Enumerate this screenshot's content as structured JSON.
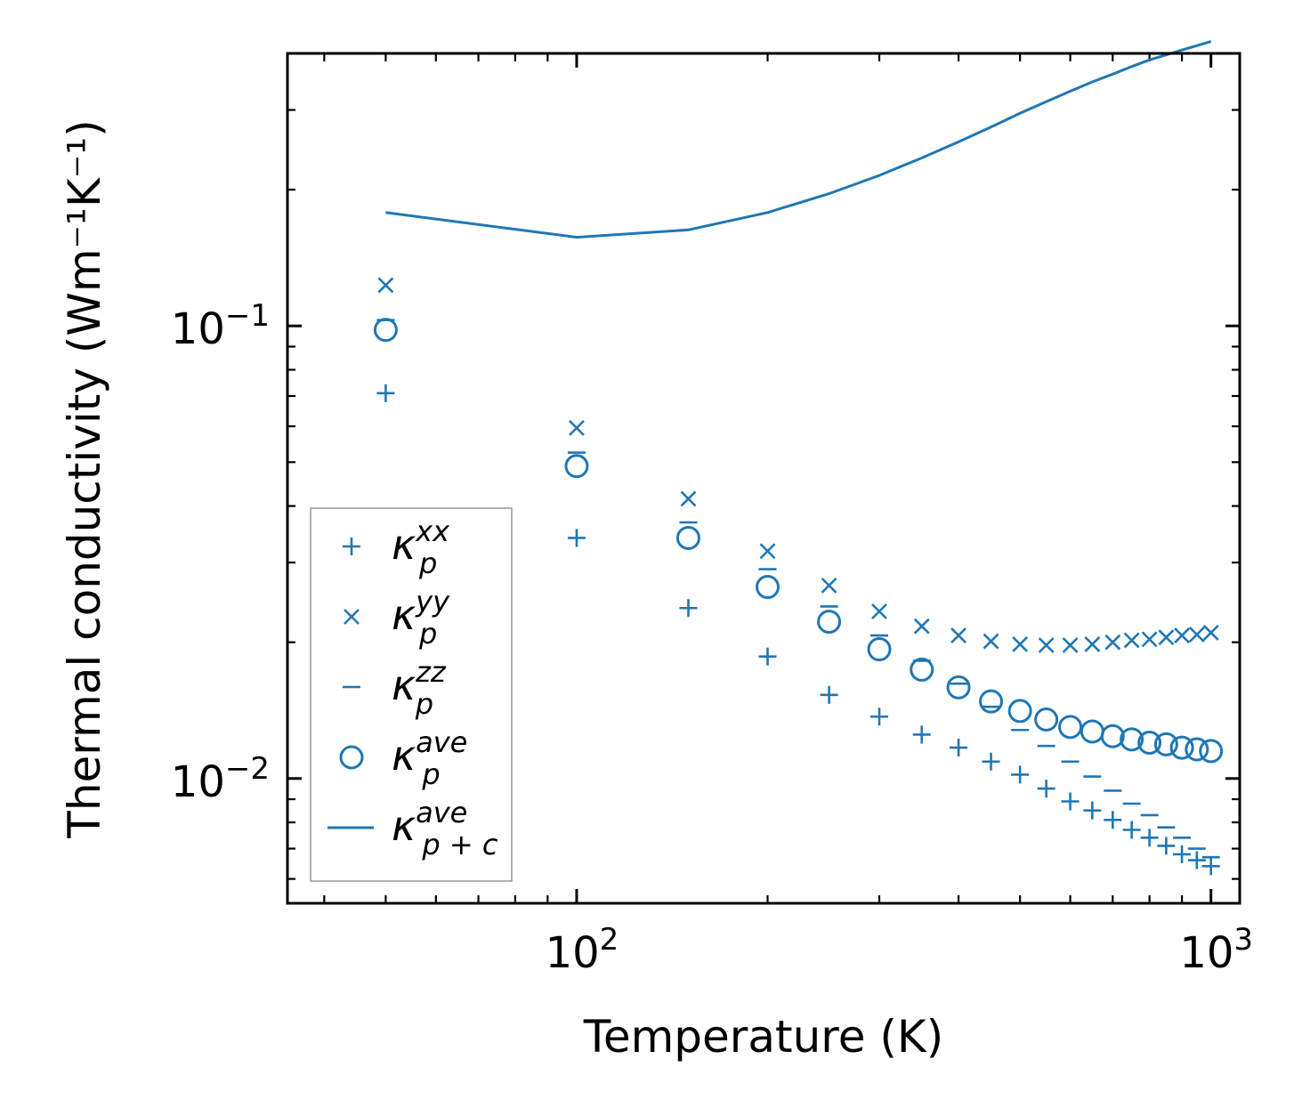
{
  "chart_data": {
    "type": "scatter",
    "xscale": "log",
    "yscale": "log",
    "xlabel": "Temperature (K)",
    "ylabel": "Thermal conductivity (Wm⁻¹K⁻¹)",
    "xlim": [
      35,
      1110
    ],
    "ylim": [
      0.0053,
      0.4
    ],
    "xticks": [
      {
        "base": "10",
        "exp": "2",
        "value": 100
      },
      {
        "base": "10",
        "exp": "3",
        "value": 1000
      }
    ],
    "yticks": [
      {
        "base": "10",
        "exp": "−2",
        "value": 0.01
      },
      {
        "base": "10",
        "exp": "−1",
        "value": 0.1
      }
    ],
    "legend_position": "lower-left",
    "x": [
      50,
      100,
      150,
      200,
      250,
      300,
      350,
      400,
      450,
      500,
      550,
      600,
      650,
      700,
      750,
      800,
      850,
      900,
      950,
      1000
    ],
    "series": [
      {
        "name": "kappa_p^xx",
        "label_base": "κ",
        "sub": "p",
        "sup": "xx",
        "marker": "plus",
        "values": [
          0.071,
          0.034,
          0.0238,
          0.0186,
          0.0153,
          0.0137,
          0.0125,
          0.0117,
          0.0109,
          0.0102,
          0.0095,
          0.0089,
          0.0085,
          0.0081,
          0.0077,
          0.0074,
          0.0071,
          0.0068,
          0.0066,
          0.0064
        ]
      },
      {
        "name": "kappa_p^yy",
        "label_base": "κ",
        "sub": "p",
        "sup": "yy",
        "marker": "x",
        "values": [
          0.123,
          0.0595,
          0.0415,
          0.0318,
          0.0267,
          0.0234,
          0.0217,
          0.0207,
          0.0201,
          0.0198,
          0.0197,
          0.0197,
          0.0198,
          0.02,
          0.0202,
          0.0203,
          0.0205,
          0.0207,
          0.0208,
          0.021
        ]
      },
      {
        "name": "kappa_p^zz",
        "label_base": "κ",
        "sub": "p",
        "sup": "zz",
        "marker": "minus",
        "values": [
          0.103,
          0.0525,
          0.0368,
          0.029,
          0.024,
          0.0207,
          0.0182,
          0.0162,
          0.0144,
          0.0128,
          0.0118,
          0.0109,
          0.0101,
          0.0094,
          0.0088,
          0.0083,
          0.0078,
          0.0074,
          0.007,
          0.0067
        ]
      },
      {
        "name": "kappa_p^ave",
        "label_base": "κ",
        "sub": "p",
        "sup": "ave",
        "marker": "circle",
        "values": [
          0.098,
          0.049,
          0.034,
          0.0265,
          0.0222,
          0.0193,
          0.0174,
          0.0159,
          0.0148,
          0.0141,
          0.0135,
          0.013,
          0.0127,
          0.0124,
          0.0122,
          0.012,
          0.0119,
          0.0117,
          0.0116,
          0.0115
        ]
      },
      {
        "name": "kappa_p+c^ave",
        "label_base": "κ",
        "sub": "p + c",
        "sup": "ave",
        "marker": "line",
        "values": [
          0.178,
          0.157,
          0.163,
          0.178,
          0.196,
          0.215,
          0.235,
          0.255,
          0.275,
          0.295,
          0.313,
          0.33,
          0.346,
          0.36,
          0.374,
          0.387,
          0.397,
          0.407,
          0.416,
          0.425
        ]
      }
    ],
    "colors": {
      "series": "#1f77b4",
      "axes": "#000000",
      "legend_border": "#999999"
    }
  }
}
